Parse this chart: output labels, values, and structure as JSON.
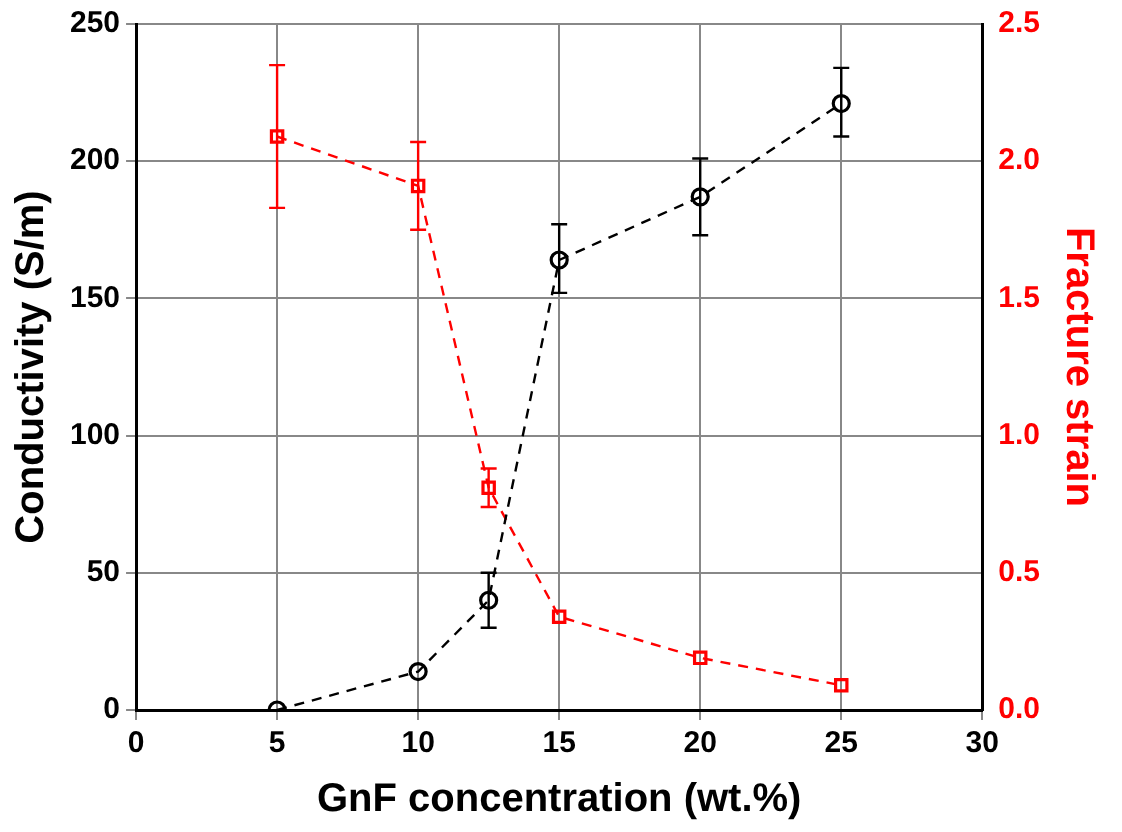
{
  "chart_data": {
    "type": "line",
    "xlabel": "GnF concentration (wt.%)",
    "ylabel": "Conductivity (S/m)",
    "y2label": "Fracture strain",
    "x": [
      5,
      10,
      12.5,
      15,
      20,
      25
    ],
    "series": [
      {
        "color": "#000000",
        "marker": "circle",
        "line_style": "dashed",
        "values": [
          0,
          14,
          40,
          164,
          187,
          221
        ],
        "errors": [
          null,
          null,
          [
            30,
            50
          ],
          [
            152,
            177
          ],
          [
            173,
            201
          ],
          [
            209,
            234
          ]
        ]
      },
      {
        "color": "#ff0000",
        "marker": "square",
        "line_style": "dashed",
        "axis": "y2",
        "values": [
          2.09,
          1.91,
          0.81,
          0.34,
          0.19,
          0.09
        ],
        "errors": [
          [
            1.83,
            2.35
          ],
          [
            1.75,
            2.07
          ],
          [
            0.74,
            0.88
          ],
          null,
          null,
          null
        ]
      }
    ],
    "xlim": [
      0,
      30
    ],
    "xticks": [
      0,
      5,
      10,
      15,
      20,
      25,
      30
    ],
    "ylim": [
      0,
      250
    ],
    "yticks": [
      0,
      50,
      100,
      150,
      200,
      250
    ],
    "y2lim": [
      0,
      2.5
    ],
    "y2ticks": [
      {
        "value": 0,
        "label": "0.0"
      },
      0.5,
      {
        "value": 1,
        "label": "1.0"
      },
      1.5,
      {
        "value": 2,
        "label": "2.0"
      },
      2.5
    ],
    "grid": true,
    "legend": false
  }
}
